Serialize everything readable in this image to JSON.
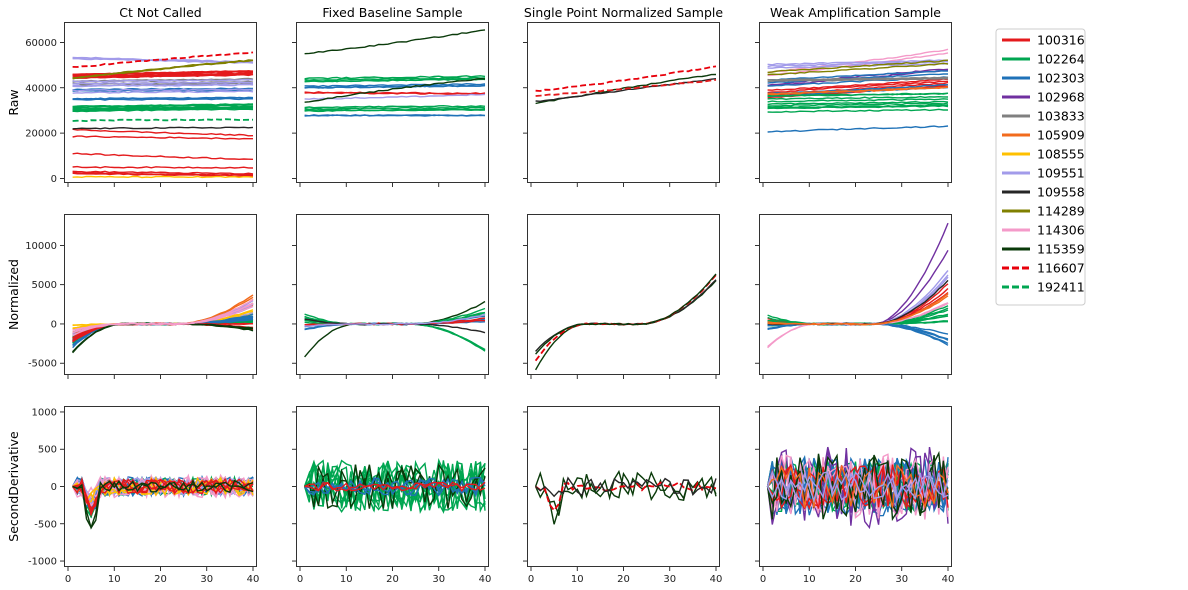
{
  "chart_data": {
    "type": "line",
    "layout": "3x4 grid of subplots, shared x axis per column, shared y axis per row",
    "column_titles": [
      "Ct Not Called",
      "Fixed Baseline Sample",
      "Single Point Normalized Sample",
      "Weak Amplification Sample"
    ],
    "row_labels": [
      "Raw",
      "Normalized",
      "SecondDerivative"
    ],
    "x_range": [
      0,
      40
    ],
    "x_ticks": [
      0,
      10,
      20,
      30,
      40
    ],
    "rows": [
      {
        "name": "Raw",
        "ylim": [
          -2000,
          69000
        ],
        "yticks": [
          0,
          20000,
          40000,
          60000
        ]
      },
      {
        "name": "Normalized",
        "ylim": [
          -6500,
          14000
        ],
        "yticks": [
          -5000,
          0,
          5000,
          10000
        ]
      },
      {
        "name": "SecondDerivative",
        "ylim": [
          -1080,
          1080
        ],
        "yticks": [
          -1000,
          -500,
          0,
          500,
          1000
        ]
      }
    ],
    "legend": {
      "placement": "outside right, top",
      "entries": [
        {
          "label": "100316",
          "color": "#e41a1c",
          "style": "solid"
        },
        {
          "label": "102264",
          "color": "#00a651",
          "style": "solid"
        },
        {
          "label": "102303",
          "color": "#1f72b8",
          "style": "solid"
        },
        {
          "label": "102968",
          "color": "#7030a0",
          "style": "solid"
        },
        {
          "label": "103833",
          "color": "#808080",
          "style": "solid"
        },
        {
          "label": "105909",
          "color": "#f26b1d",
          "style": "solid"
        },
        {
          "label": "108555",
          "color": "#ffc000",
          "style": "solid"
        },
        {
          "label": "109551",
          "color": "#a29bea",
          "style": "solid"
        },
        {
          "label": "109558",
          "color": "#262626",
          "style": "solid"
        },
        {
          "label": "114289",
          "color": "#808000",
          "style": "solid"
        },
        {
          "label": "114306",
          "color": "#f49ac9",
          "style": "solid"
        },
        {
          "label": "115359",
          "color": "#0a3a0a",
          "style": "solid"
        },
        {
          "label": "116607",
          "color": "#e8000b",
          "style": "dashed"
        },
        {
          "label": "192411",
          "color": "#00a651",
          "style": "dashed"
        }
      ]
    },
    "panels": [
      {
        "row": 0,
        "col": 0,
        "series": [
          {
            "color": "#a29bea",
            "count": 3,
            "start": 53000,
            "end": 51000,
            "spread": 800
          },
          {
            "color": "#e41a1c",
            "count": 10,
            "start": 45000,
            "end": 46500,
            "spread": 2500
          },
          {
            "color": "#808080",
            "count": 5,
            "start": 42000,
            "end": 43000,
            "spread": 3000
          },
          {
            "color": "#1f72b8",
            "count": 8,
            "start": 37000,
            "end": 37500,
            "spread": 5000
          },
          {
            "color": "#a29bea",
            "count": 6,
            "start": 40000,
            "end": 40500,
            "spread": 6000
          },
          {
            "color": "#00a651",
            "count": 10,
            "start": 30000,
            "end": 31000,
            "spread": 4000
          },
          {
            "color": "#808000",
            "count": 3,
            "start": 44000,
            "end": 52000,
            "spread": 1000
          },
          {
            "color": "#e41a1c",
            "count": 1,
            "start": 21500,
            "end": 19000,
            "spread": 0
          },
          {
            "color": "#e41a1c",
            "count": 1,
            "start": 18500,
            "end": 17500,
            "spread": 0
          },
          {
            "color": "#e41a1c",
            "count": 1,
            "start": 11000,
            "end": 8500,
            "spread": 0
          },
          {
            "color": "#e41a1c",
            "count": 1,
            "start": 5000,
            "end": 4800,
            "spread": 0
          },
          {
            "color": "#e41a1c",
            "count": 3,
            "start": 2500,
            "end": 1500,
            "spread": 1200
          },
          {
            "color": "#ffc000",
            "count": 1,
            "start": 700,
            "end": 600,
            "spread": 0
          },
          {
            "color": "#262626",
            "count": 1,
            "start": 22000,
            "end": 22500,
            "spread": 0
          },
          {
            "color": "#e8000b",
            "count": 1,
            "start": 49000,
            "end": 55500,
            "spread": 0,
            "dashed": true
          },
          {
            "color": "#00a651",
            "count": 1,
            "start": 25500,
            "end": 26000,
            "spread": 0,
            "dashed": true
          }
        ]
      },
      {
        "row": 0,
        "col": 1,
        "series": [
          {
            "color": "#0a3a0a",
            "count": 1,
            "start": 55000,
            "end": 65500,
            "spread": 0
          },
          {
            "color": "#00a651",
            "count": 4,
            "start": 43500,
            "end": 44500,
            "spread": 1500
          },
          {
            "color": "#e41a1c",
            "count": 2,
            "start": 38000,
            "end": 37500,
            "spread": 1500
          },
          {
            "color": "#1f72b8",
            "count": 3,
            "start": 40000,
            "end": 41000,
            "spread": 1500
          },
          {
            "color": "#a29bea",
            "count": 1,
            "start": 35000,
            "end": 37000,
            "spread": 0
          },
          {
            "color": "#0a3a0a",
            "count": 1,
            "start": 33500,
            "end": 44000,
            "spread": 0
          },
          {
            "color": "#00a651",
            "count": 5,
            "start": 30500,
            "end": 31000,
            "spread": 2500
          },
          {
            "color": "#1f72b8",
            "count": 2,
            "start": 28000,
            "end": 28000,
            "spread": 600
          }
        ]
      },
      {
        "row": 0,
        "col": 2,
        "series": [
          {
            "color": "#e8000b",
            "count": 1,
            "start": 38500,
            "end": 49500,
            "spread": 0,
            "dashed": true
          },
          {
            "color": "#0a3a0a",
            "count": 1,
            "start": 33000,
            "end": 46000,
            "spread": 0
          },
          {
            "color": "#262626",
            "count": 1,
            "start": 34000,
            "end": 44000,
            "spread": 0
          },
          {
            "color": "#e41a1c",
            "count": 1,
            "start": 36500,
            "end": 43500,
            "spread": 0,
            "dashed": true
          }
        ]
      },
      {
        "row": 0,
        "col": 3,
        "series": [
          {
            "color": "#f49ac9",
            "count": 2,
            "start": 46000,
            "end": 56000,
            "spread": 3000
          },
          {
            "color": "#a29bea",
            "count": 3,
            "start": 49000,
            "end": 51000,
            "spread": 3000
          },
          {
            "color": "#7030a0",
            "count": 2,
            "start": 40000,
            "end": 47000,
            "spread": 3000
          },
          {
            "color": "#e41a1c",
            "count": 5,
            "start": 37000,
            "end": 42000,
            "spread": 4000
          },
          {
            "color": "#1f72b8",
            "count": 5,
            "start": 40000,
            "end": 44000,
            "spread": 8000
          },
          {
            "color": "#00a651",
            "count": 10,
            "start": 33000,
            "end": 34000,
            "spread": 8000
          },
          {
            "color": "#808080",
            "count": 3,
            "start": 44000,
            "end": 45000,
            "spread": 3000
          },
          {
            "color": "#f26b1d",
            "count": 2,
            "start": 37000,
            "end": 40000,
            "spread": 2000
          },
          {
            "color": "#808000",
            "count": 2,
            "start": 46000,
            "end": 51000,
            "spread": 2000
          },
          {
            "color": "#1f72b8",
            "count": 1,
            "start": 20500,
            "end": 23000,
            "spread": 0
          }
        ]
      },
      {
        "row": 1,
        "col": 0,
        "series": [
          {
            "color": "#f26b1d",
            "count": 6,
            "start": -1500,
            "end": 3000,
            "spread": 1500
          },
          {
            "color": "#a29bea",
            "count": 6,
            "start": -1000,
            "end": 2000,
            "spread": 2000
          },
          {
            "color": "#ffc000",
            "count": 4,
            "start": -500,
            "end": 1500,
            "spread": 1500
          },
          {
            "color": "#00a651",
            "count": 8,
            "start": -2000,
            "end": 500,
            "spread": 1500
          },
          {
            "color": "#1f72b8",
            "count": 6,
            "start": -2500,
            "end": 800,
            "spread": 1500
          },
          {
            "color": "#e41a1c",
            "count": 6,
            "start": -2000,
            "end": -300,
            "spread": 1000
          },
          {
            "color": "#0a3a0a",
            "count": 3,
            "start": -3500,
            "end": -700,
            "spread": 600
          },
          {
            "color": "#f49ac9",
            "count": 4,
            "start": -1000,
            "end": 2500,
            "spread": 1500
          }
        ]
      },
      {
        "row": 1,
        "col": 1,
        "series": [
          {
            "color": "#0a3a0a",
            "count": 1,
            "start": -4200,
            "end": 2800,
            "spread": 0
          },
          {
            "color": "#00a651",
            "count": 4,
            "start": 1000,
            "end": -4000,
            "spread": 1500
          },
          {
            "color": "#00a651",
            "count": 4,
            "start": 500,
            "end": 1800,
            "spread": 1500
          },
          {
            "color": "#1f72b8",
            "count": 3,
            "start": -500,
            "end": 800,
            "spread": 1000
          },
          {
            "color": "#e41a1c",
            "count": 2,
            "start": 0,
            "end": 700,
            "spread": 500
          },
          {
            "color": "#262626",
            "count": 1,
            "start": 600,
            "end": -1100,
            "spread": 0
          },
          {
            "color": "#a29bea",
            "count": 1,
            "start": -300,
            "end": 1200,
            "spread": 0
          }
        ]
      },
      {
        "row": 1,
        "col": 2,
        "series": [
          {
            "color": "#0a3a0a",
            "count": 1,
            "start": -5800,
            "end": 5500,
            "spread": 0
          },
          {
            "color": "#262626",
            "count": 1,
            "start": -3500,
            "end": 5600,
            "spread": 0
          },
          {
            "color": "#e8000b",
            "count": 1,
            "start": -4700,
            "end": 6200,
            "spread": 0,
            "dashed": true
          },
          {
            "color": "#0a3a0a",
            "count": 1,
            "start": -3800,
            "end": 6400,
            "spread": 0
          }
        ]
      },
      {
        "row": 1,
        "col": 3,
        "series": [
          {
            "color": "#7030a0",
            "count": 1,
            "start": 400,
            "end": 12800,
            "spread": 0
          },
          {
            "color": "#7030a0",
            "count": 1,
            "start": -200,
            "end": 9400,
            "spread": 0
          },
          {
            "color": "#a29bea",
            "count": 3,
            "start": 300,
            "end": 6500,
            "spread": 1500
          },
          {
            "color": "#e41a1c",
            "count": 4,
            "start": 500,
            "end": 4500,
            "spread": 1500
          },
          {
            "color": "#00a651",
            "count": 10,
            "start": 500,
            "end": 1500,
            "spread": 2500
          },
          {
            "color": "#1f72b8",
            "count": 5,
            "start": -500,
            "end": -2000,
            "spread": 1500
          },
          {
            "color": "#f49ac9",
            "count": 2,
            "start": -3200,
            "end": 3000,
            "spread": 1500
          },
          {
            "color": "#262626",
            "count": 1,
            "start": 0,
            "end": 5600,
            "spread": 0
          },
          {
            "color": "#f26b1d",
            "count": 2,
            "start": 0,
            "end": 3500,
            "spread": 1000
          }
        ]
      },
      {
        "row": 2,
        "col": 0,
        "series": [
          {
            "color": "#00a651",
            "count": 10,
            "amp": 120,
            "dip": -300
          },
          {
            "color": "#1f72b8",
            "count": 6,
            "amp": 130,
            "dip": -250
          },
          {
            "color": "#a29bea",
            "count": 5,
            "amp": 120,
            "dip": -200
          },
          {
            "color": "#f49ac9",
            "count": 4,
            "amp": 150,
            "dip": -150
          },
          {
            "color": "#ffc000",
            "count": 3,
            "amp": 120,
            "dip": -200
          },
          {
            "color": "#e41a1c",
            "count": 5,
            "amp": 100,
            "dip": -300
          },
          {
            "color": "#0a3a0a",
            "count": 2,
            "amp": 80,
            "dip": -550
          }
        ]
      },
      {
        "row": 2,
        "col": 1,
        "series": [
          {
            "color": "#00a651",
            "count": 10,
            "amp": 350,
            "dip": 0
          },
          {
            "color": "#0a3a0a",
            "count": 2,
            "amp": 300,
            "dip": 0
          },
          {
            "color": "#1f72b8",
            "count": 3,
            "amp": 120,
            "dip": 0
          },
          {
            "color": "#e41a1c",
            "count": 2,
            "amp": 60,
            "dip": 0
          }
        ]
      },
      {
        "row": 2,
        "col": 2,
        "series": [
          {
            "color": "#0a3a0a",
            "count": 2,
            "amp": 200,
            "dip": -380
          },
          {
            "color": "#e8000b",
            "count": 1,
            "amp": 60,
            "dip": -300,
            "dashed": true
          },
          {
            "color": "#262626",
            "count": 1,
            "amp": 120,
            "dip": -250
          }
        ]
      },
      {
        "row": 2,
        "col": 3,
        "series": [
          {
            "color": "#00a651",
            "count": 12,
            "amp": 350,
            "dip": 0
          },
          {
            "color": "#1f72b8",
            "count": 8,
            "amp": 400,
            "dip": 0
          },
          {
            "color": "#7030a0",
            "count": 2,
            "amp": 550,
            "dip": 0
          },
          {
            "color": "#f49ac9",
            "count": 3,
            "amp": 450,
            "dip": 0
          },
          {
            "color": "#e41a1c",
            "count": 3,
            "amp": 300,
            "dip": 0
          },
          {
            "color": "#0a3a0a",
            "count": 2,
            "amp": 450,
            "dip": 0
          },
          {
            "color": "#f26b1d",
            "count": 1,
            "amp": 300,
            "dip": 0
          },
          {
            "color": "#a29bea",
            "count": 2,
            "amp": 200,
            "dip": 0
          }
        ]
      }
    ]
  }
}
